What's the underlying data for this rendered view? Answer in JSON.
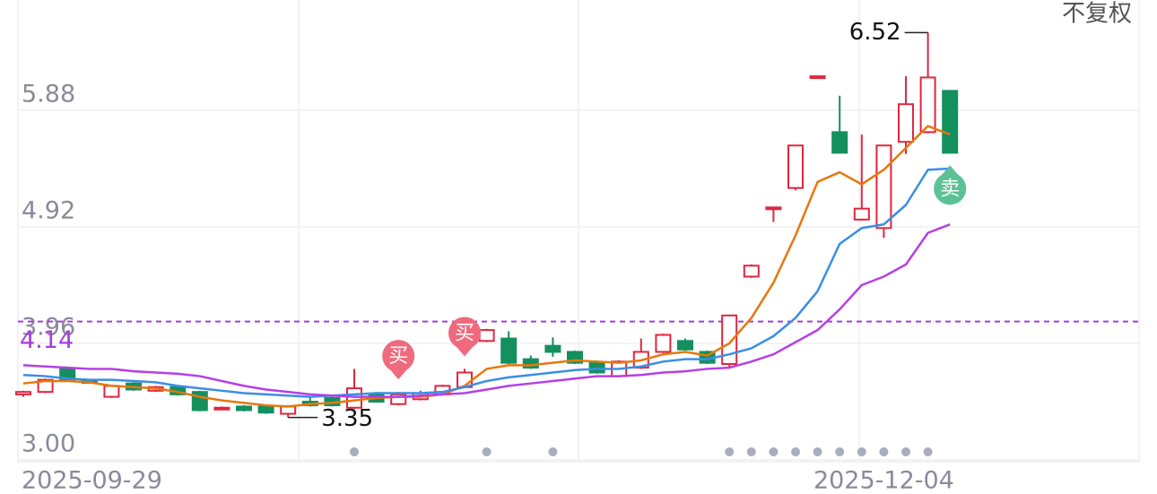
{
  "chart_data": {
    "type": "candlestick",
    "corner_label": "不复权",
    "categories": [
      "2025-09-29",
      null,
      null,
      null,
      null,
      null,
      null,
      null,
      null,
      null,
      null,
      null,
      null,
      null,
      null,
      null,
      null,
      null,
      null,
      null,
      null,
      null,
      null,
      null,
      null,
      null,
      null,
      null,
      null,
      null,
      null,
      null,
      null,
      null,
      null,
      null,
      null,
      null,
      null,
      "2025-12-04",
      null,
      null,
      null
    ],
    "open": [
      3.54,
      3.56,
      3.75,
      3.65,
      3.52,
      3.63,
      3.57,
      3.6,
      3.56,
      3.42,
      3.44,
      3.44,
      3.38,
      3.48,
      3.51,
      3.43,
      3.54,
      3.46,
      3.5,
      3.54,
      3.6,
      3.98,
      4.0,
      3.83,
      3.94,
      3.89,
      3.8,
      3.69,
      3.76,
      3.89,
      3.98,
      3.89,
      3.79,
      4.51,
      5.07,
      5.24,
      6.15,
      5.7,
      4.98,
      4.91,
      5.62,
      5.7,
      6.04
    ],
    "high": [
      3.57,
      3.67,
      3.76,
      3.66,
      3.62,
      3.64,
      3.61,
      3.61,
      3.57,
      3.44,
      3.45,
      3.45,
      3.45,
      3.52,
      3.53,
      3.75,
      3.56,
      3.56,
      3.57,
      3.62,
      3.75,
      4.08,
      4.06,
      3.86,
      4.01,
      3.9,
      3.82,
      3.82,
      4.0,
      4.04,
      4.0,
      3.9,
      4.19,
      4.61,
      5.08,
      5.59,
      6.16,
      6.0,
      5.68,
      5.59,
      6.16,
      6.52,
      6.04
    ],
    "low": [
      3.52,
      3.55,
      3.65,
      3.63,
      3.51,
      3.57,
      3.56,
      3.53,
      3.4,
      3.41,
      3.4,
      3.38,
      3.35,
      3.44,
      3.44,
      3.42,
      3.47,
      3.45,
      3.49,
      3.53,
      3.59,
      3.97,
      3.79,
      3.75,
      3.85,
      3.79,
      3.71,
      3.68,
      3.75,
      3.88,
      3.9,
      3.79,
      3.76,
      4.5,
      4.96,
      5.22,
      6.15,
      5.53,
      4.97,
      4.83,
      5.52,
      5.69,
      5.53
    ],
    "close": [
      3.56,
      3.66,
      3.66,
      3.64,
      3.61,
      3.58,
      3.6,
      3.54,
      3.41,
      3.43,
      3.41,
      3.39,
      3.44,
      3.45,
      3.45,
      3.59,
      3.48,
      3.54,
      3.55,
      3.61,
      3.72,
      4.07,
      3.8,
      3.76,
      3.89,
      3.8,
      3.72,
      3.81,
      3.89,
      4.03,
      3.91,
      3.8,
      4.19,
      4.6,
      5.08,
      5.59,
      6.16,
      5.53,
      5.07,
      5.59,
      5.93,
      6.15,
      5.53
    ],
    "up_color": "#e0263f",
    "down_color": "#14905e",
    "series": [
      {
        "color": "#e8770d",
        "values": [
          3.63,
          3.65,
          3.65,
          3.64,
          3.61,
          3.6,
          3.59,
          3.56,
          3.52,
          3.49,
          3.47,
          3.45,
          3.44,
          3.46,
          3.47,
          3.49,
          3.51,
          3.52,
          3.52,
          3.54,
          3.61,
          3.75,
          3.78,
          3.78,
          3.8,
          3.82,
          3.81,
          3.8,
          3.82,
          3.87,
          3.89,
          3.86,
          3.96,
          4.17,
          4.46,
          4.85,
          5.29,
          5.37,
          5.27,
          5.39,
          5.57,
          5.75,
          5.68
        ]
      },
      {
        "color": "#3a8ee6",
        "values": [
          3.7,
          3.69,
          3.67,
          3.66,
          3.66,
          3.65,
          3.64,
          3.61,
          3.59,
          3.57,
          3.55,
          3.54,
          3.53,
          3.52,
          3.53,
          3.54,
          3.55,
          3.55,
          3.55,
          3.56,
          3.6,
          3.65,
          3.68,
          3.7,
          3.72,
          3.74,
          3.75,
          3.75,
          3.77,
          3.81,
          3.83,
          3.83,
          3.87,
          3.92,
          4.02,
          4.17,
          4.39,
          4.78,
          4.91,
          4.94,
          5.1,
          5.39,
          5.4
        ]
      },
      {
        "color": "#b63fe6",
        "values": [
          3.78,
          3.77,
          3.76,
          3.75,
          3.75,
          3.73,
          3.72,
          3.71,
          3.69,
          3.65,
          3.61,
          3.58,
          3.56,
          3.54,
          3.53,
          3.52,
          3.52,
          3.52,
          3.53,
          3.54,
          3.55,
          3.58,
          3.61,
          3.63,
          3.65,
          3.67,
          3.69,
          3.69,
          3.7,
          3.72,
          3.73,
          3.75,
          3.76,
          3.81,
          3.87,
          3.97,
          4.07,
          4.24,
          4.44,
          4.51,
          4.61,
          4.87,
          4.94
        ]
      }
    ],
    "ylim": [
      3.0,
      6.84
    ],
    "yticks": [
      {
        "value": 3.0,
        "label": "3.00"
      },
      3.96,
      4.92,
      5.88,
      6.84
    ],
    "grid": true,
    "reference_line": {
      "value": 4.14,
      "color": "#a23fd6"
    },
    "high_label_index": 41,
    "low_label_index": 12,
    "signals": [
      {
        "label": "买",
        "index": 17,
        "color": "#f06a7d",
        "side": "buy"
      },
      {
        "label": "买",
        "index": 20,
        "color": "#f06a7d",
        "side": "buy"
      },
      {
        "label": "卖",
        "index": 42,
        "color": "#5cc195",
        "side": "sell"
      }
    ],
    "dots": [
      15,
      21,
      24,
      32,
      33,
      34,
      35,
      36,
      37,
      38,
      39,
      40,
      41
    ]
  }
}
